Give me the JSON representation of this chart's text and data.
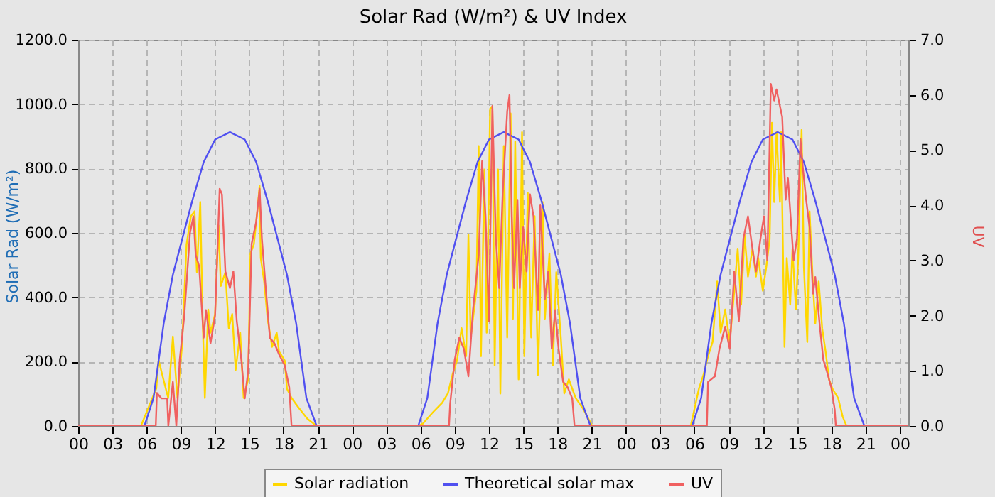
{
  "chart_data": {
    "type": "line",
    "title": "Solar Rad (W/m²) &  UV Index",
    "ylabel": "Solar Rad (W/m²)",
    "y2label": "UV",
    "legend": "bottom",
    "grid": true,
    "xlim": [
      0,
      72.75
    ],
    "xticks": [
      {
        "value": 0,
        "label": "00"
      },
      {
        "value": 3,
        "label": "03"
      },
      {
        "value": 6,
        "label": "06"
      },
      {
        "value": 9,
        "label": "09"
      },
      {
        "value": 12,
        "label": "12"
      },
      {
        "value": 15,
        "label": "15"
      },
      {
        "value": 18,
        "label": "18"
      },
      {
        "value": 21,
        "label": "21"
      },
      {
        "value": 24,
        "label": "00"
      },
      {
        "value": 27,
        "label": "03"
      },
      {
        "value": 30,
        "label": "06"
      },
      {
        "value": 33,
        "label": "09"
      },
      {
        "value": 36,
        "label": "12"
      },
      {
        "value": 39,
        "label": "15"
      },
      {
        "value": 42,
        "label": "18"
      },
      {
        "value": 45,
        "label": "21"
      },
      {
        "value": 48,
        "label": "00"
      },
      {
        "value": 51,
        "label": "03"
      },
      {
        "value": 54,
        "label": "06"
      },
      {
        "value": 57,
        "label": "09"
      },
      {
        "value": 60,
        "label": "12"
      },
      {
        "value": 63,
        "label": "15"
      },
      {
        "value": 66,
        "label": "18"
      },
      {
        "value": 69,
        "label": "21"
      },
      {
        "value": 72,
        "label": "00"
      }
    ],
    "ylim": [
      0,
      1200
    ],
    "yticks": [
      {
        "value": 0,
        "label": "0.0"
      },
      {
        "value": 200,
        "label": "200.0"
      },
      {
        "value": 400,
        "label": "400.0"
      },
      {
        "value": 600,
        "label": "600.0"
      },
      {
        "value": 800,
        "label": "800.0"
      },
      {
        "value": 1000,
        "label": "1000.0"
      },
      {
        "value": 1200,
        "label": "1200.0"
      }
    ],
    "y2lim": [
      0,
      7
    ],
    "y2ticks": [
      {
        "value": 0,
        "label": "0.0"
      },
      {
        "value": 1,
        "label": "1.0"
      },
      {
        "value": 2,
        "label": "2.0"
      },
      {
        "value": 3,
        "label": "3.0"
      },
      {
        "value": 4,
        "label": "4.0"
      },
      {
        "value": 5,
        "label": "5.0"
      },
      {
        "value": 6,
        "label": "6.0"
      },
      {
        "value": 7,
        "label": "7.0"
      }
    ],
    "series": [
      {
        "name": "Solar radiation",
        "color": "#ffd700",
        "x": [
          0,
          5.5,
          6.85,
          7.05,
          7.47,
          7.89,
          8.3,
          8.7,
          9.1,
          9.5,
          9.88,
          10.2,
          10.4,
          10.7,
          10.9,
          11.1,
          11.4,
          11.6,
          12.0,
          12.3,
          12.5,
          12.9,
          13.2,
          13.5,
          13.8,
          14.2,
          14.5,
          14.9,
          15.1,
          15.4,
          15.7,
          15.9,
          16.0,
          16.3,
          16.6,
          17.0,
          17.4,
          17.6,
          18.1,
          18.3,
          18.7,
          19.3,
          20.1,
          20.8,
          21.2,
          29.8,
          30.2,
          31.1,
          31.9,
          32.4,
          32.8,
          33.2,
          33.6,
          34.0,
          34.2,
          34.4,
          34.9,
          35.1,
          35.3,
          35.6,
          35.8,
          36.1,
          36.3,
          36.5,
          36.8,
          37.0,
          37.3,
          37.6,
          37.9,
          38.1,
          38.3,
          38.6,
          38.9,
          39.1,
          39.4,
          39.7,
          40.0,
          40.3,
          40.7,
          40.9,
          41.3,
          41.6,
          41.9,
          42.3,
          42.6,
          43.0,
          43.6,
          44.3,
          45.0,
          45.3,
          53.5,
          53.7,
          54.4,
          54.8,
          55.2,
          55.6,
          56.0,
          56.3,
          56.7,
          57.1,
          57.5,
          57.8,
          58.1,
          58.4,
          58.7,
          59.1,
          59.4,
          59.6,
          60.0,
          60.3,
          60.6,
          60.8,
          61.0,
          61.2,
          61.5,
          61.6,
          61.9,
          62.1,
          62.4,
          62.6,
          62.9,
          63.1,
          63.4,
          63.6,
          63.9,
          64.1,
          64.4,
          64.6,
          64.9,
          65.2,
          65.5,
          65.8,
          66.1,
          66.6,
          67.0,
          67.3,
          67.6,
          72.7
        ],
        "values": [
          0,
          0,
          117,
          204,
          145,
          87,
          278,
          87,
          248,
          565,
          652,
          667,
          478,
          696,
          348,
          87,
          362,
          290,
          348,
          623,
          435,
          478,
          304,
          348,
          174,
          290,
          87,
          145,
          536,
          565,
          667,
          746,
          522,
          449,
          333,
          246,
          290,
          232,
          204,
          116,
          87,
          58,
          22,
          3,
          0,
          0,
          7,
          43,
          72,
          101,
          159,
          203,
          304,
          217,
          594,
          275,
          420,
          870,
          217,
          797,
          290,
          986,
          993,
          188,
          797,
          101,
          870,
          275,
          971,
          333,
          884,
          145,
          913,
          217,
          725,
          275,
          652,
          159,
          696,
          333,
          536,
          188,
          478,
          275,
          101,
          145,
          87,
          51,
          3,
          0,
          0,
          3,
          116,
          159,
          217,
          261,
          449,
          290,
          362,
          261,
          420,
          551,
          377,
          594,
          464,
          551,
          464,
          522,
          420,
          493,
          580,
          942,
          696,
          913,
          696,
          913,
          246,
          522,
          377,
          551,
          362,
          522,
          920,
          493,
          261,
          667,
          435,
          319,
          449,
          304,
          232,
          145,
          116,
          87,
          29,
          3,
          0,
          0
        ]
      },
      {
        "name": "Theoretical solar max",
        "color": "#5050f0",
        "x": [
          0,
          5.8,
          6.6,
          7.5,
          8.3,
          9,
          10,
          11,
          12,
          13.3,
          14.6,
          15.6,
          16.6,
          17.6,
          18.3,
          19.1,
          20,
          20.9,
          29.8,
          30.6,
          31.5,
          32.3,
          33,
          34,
          35,
          36,
          37.3,
          38.6,
          39.6,
          40.6,
          41.6,
          42.3,
          43.1,
          44,
          44.9,
          53.8,
          54.6,
          55.5,
          56.3,
          57,
          58,
          59,
          60,
          61.3,
          62.6,
          63.6,
          64.6,
          65.6,
          66.3,
          67.1,
          68,
          68.9,
          72.7
        ],
        "values": [
          0,
          0,
          87,
          320,
          470,
          565,
          700,
          820,
          890,
          913,
          890,
          820,
          700,
          565,
          470,
          320,
          87,
          0,
          0,
          87,
          320,
          470,
          565,
          700,
          820,
          890,
          913,
          890,
          820,
          700,
          565,
          470,
          320,
          87,
          0,
          0,
          87,
          320,
          470,
          565,
          700,
          820,
          890,
          913,
          890,
          820,
          700,
          565,
          470,
          320,
          87,
          0,
          0
        ]
      },
      {
        "name": "UV",
        "color": "#f06060",
        "axis": "y2",
        "x": [
          0,
          6.8,
          6.9,
          7.3,
          7.8,
          7.9,
          8.3,
          8.6,
          8.9,
          9.3,
          9.8,
          10.1,
          10.3,
          10.6,
          11.0,
          11.2,
          11.6,
          12.0,
          12.4,
          12.6,
          12.9,
          13.3,
          13.6,
          13.9,
          14.3,
          14.6,
          14.9,
          15.2,
          15.6,
          15.9,
          16.1,
          16.4,
          16.8,
          17.2,
          17.6,
          18.1,
          18.5,
          18.7,
          32.5,
          32.6,
          33.0,
          33.4,
          33.8,
          34.2,
          34.6,
          35.1,
          35.4,
          35.7,
          36.0,
          36.3,
          36.6,
          36.9,
          37.2,
          37.6,
          37.8,
          38.0,
          38.2,
          38.5,
          38.7,
          39.0,
          39.3,
          39.6,
          39.9,
          40.3,
          40.5,
          40.9,
          41.2,
          41.5,
          41.8,
          42.1,
          42.5,
          42.9,
          43.3,
          43.5,
          55.1,
          55.2,
          55.8,
          56.2,
          56.7,
          57.1,
          57.5,
          57.9,
          58.3,
          58.7,
          59.1,
          59.4,
          59.8,
          60.1,
          60.4,
          60.7,
          61.0,
          61.2,
          61.5,
          61.7,
          62.0,
          62.2,
          62.5,
          62.7,
          63.0,
          63.3,
          63.5,
          63.8,
          64.1,
          64.4,
          64.6,
          65.0,
          65.3,
          65.6,
          66.0,
          66.3,
          66.4,
          72.7
        ],
        "values": [
          0,
          0,
          0.6,
          0.5,
          0.5,
          0,
          0.8,
          0,
          1.2,
          2.0,
          3.5,
          3.8,
          3.1,
          2.9,
          1.6,
          2.1,
          1.5,
          2.0,
          4.3,
          4.2,
          2.8,
          2.5,
          2.8,
          1.9,
          1.2,
          0.5,
          1.0,
          3.3,
          3.7,
          4.3,
          3.4,
          2.6,
          1.6,
          1.5,
          1.3,
          1.1,
          0.7,
          0,
          0,
          0.4,
          1.2,
          1.6,
          1.4,
          0.9,
          2.1,
          3.1,
          4.8,
          3.8,
          1.9,
          5.8,
          3.4,
          2.5,
          4.2,
          5.7,
          6.0,
          3.8,
          2.5,
          4.1,
          2.5,
          3.6,
          2.8,
          4.2,
          3.8,
          2.1,
          4.0,
          2.3,
          2.8,
          1.4,
          2.1,
          1.4,
          0.8,
          0.7,
          0.5,
          0,
          0,
          0.8,
          0.9,
          1.4,
          1.8,
          1.4,
          2.8,
          1.9,
          3.4,
          3.8,
          3.2,
          2.8,
          3.4,
          3.8,
          3.0,
          6.2,
          5.9,
          6.1,
          5.8,
          5.6,
          4.1,
          4.5,
          3.6,
          3.0,
          3.4,
          5.2,
          4.7,
          4.1,
          3.6,
          2.4,
          2.7,
          1.8,
          1.2,
          1.0,
          0.7,
          0.3,
          0,
          0
        ]
      }
    ]
  }
}
